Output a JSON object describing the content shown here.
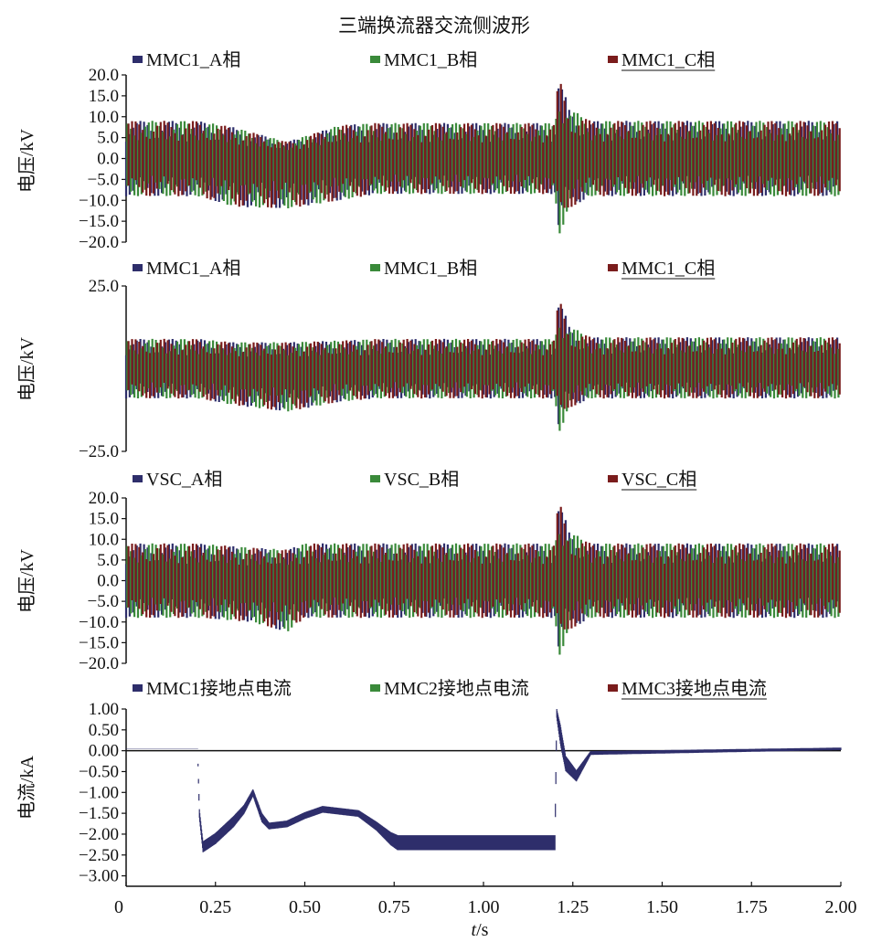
{
  "colors": {
    "A": "#2e2e6b",
    "B": "#3a8a3a",
    "C": "#7a1c1c"
  },
  "chart_data": [
    {
      "type": "line",
      "title": "三端换流器交流侧波形",
      "ylabel": "电压/kV",
      "ylim": [
        -20,
        20
      ],
      "yticks": [
        "20.0",
        "15.0",
        "10.0",
        "5.0",
        "0.0",
        "−5.0",
        "−10.0",
        "−15.0",
        "−20.0"
      ],
      "yticks_values": [
        20,
        15,
        10,
        5,
        0,
        -5,
        -10,
        -15,
        -20
      ],
      "legend": [
        "MMC1_A相",
        "MMC1_B相",
        "MMC1_C相"
      ],
      "series": [
        {
          "name": "MMC1_A相",
          "envelope": {
            "t": [
              0,
              0.2,
              0.3,
              0.45,
              0.6,
              0.7,
              1.2,
              1.21,
              1.24,
              1.3,
              2.0
            ],
            "top": [
              9,
              9,
              7.5,
              4,
              8,
              8.5,
              8.5,
              20,
              12,
              9,
              9
            ],
            "bottom": [
              -9,
              -9,
              -11.5,
              -12,
              -10,
              -8.5,
              -8.5,
              -19,
              -12,
              -9,
              -9
            ]
          }
        },
        {
          "name": "MMC1_B相",
          "envelope": {
            "t": [
              0,
              0.2,
              0.3,
              0.45,
              0.6,
              0.7,
              1.2,
              1.21,
              1.24,
              1.3,
              2.0
            ],
            "top": [
              9,
              9,
              7.5,
              4,
              8,
              8.5,
              8.5,
              20,
              12,
              9,
              9
            ],
            "bottom": [
              -9,
              -9,
              -11.5,
              -12,
              -10,
              -8.5,
              -8.5,
              -19,
              -12,
              -9,
              -9
            ]
          }
        },
        {
          "name": "MMC1_C相",
          "envelope": {
            "t": [
              0,
              0.2,
              0.3,
              0.45,
              0.6,
              0.7,
              1.2,
              1.21,
              1.24,
              1.3,
              2.0
            ],
            "top": [
              9,
              9,
              7.5,
              4,
              8,
              8.5,
              8.5,
              20,
              12,
              9,
              9
            ],
            "bottom": [
              -9,
              -9,
              -11.5,
              -12,
              -10,
              -8.5,
              -8.5,
              -19,
              -12,
              -9,
              -9
            ]
          }
        }
      ]
    },
    {
      "type": "line",
      "ylabel": "电压/kV",
      "ylim": [
        -25,
        25
      ],
      "yticks": [
        "25.0",
        "−25.0"
      ],
      "yticks_values": [
        25,
        -25
      ],
      "legend": [
        "MMC1_A相",
        "MMC1_B相",
        "MMC1_C相"
      ],
      "series": [
        {
          "name": "MMC1_A相",
          "envelope": {
            "t": [
              0,
              0.2,
              0.3,
              0.45,
              0.6,
              0.7,
              1.2,
              1.21,
              1.24,
              1.3,
              2.0
            ],
            "top": [
              9,
              9,
              8,
              8,
              8.5,
              9,
              9,
              22,
              13,
              9.5,
              9.5
            ],
            "bottom": [
              -9,
              -9,
              -11,
              -13,
              -10,
              -9,
              -9,
              -20,
              -12,
              -9,
              -9
            ]
          }
        },
        {
          "name": "MMC1_B相",
          "envelope": {
            "t": [
              0,
              0.2,
              0.3,
              0.45,
              0.6,
              0.7,
              1.2,
              1.21,
              1.24,
              1.3,
              2.0
            ],
            "top": [
              9,
              9,
              8,
              8,
              8.5,
              9,
              9,
              22,
              13,
              9.5,
              9.5
            ],
            "bottom": [
              -9,
              -9,
              -11,
              -13,
              -10,
              -9,
              -9,
              -20,
              -12,
              -9,
              -9
            ]
          }
        },
        {
          "name": "MMC1_C相",
          "envelope": {
            "t": [
              0,
              0.2,
              0.3,
              0.45,
              0.6,
              0.7,
              1.2,
              1.21,
              1.24,
              1.3,
              2.0
            ],
            "top": [
              9,
              9,
              8,
              8,
              8.5,
              9,
              9,
              22,
              13,
              9.5,
              9.5
            ],
            "bottom": [
              -9,
              -9,
              -11,
              -13,
              -10,
              -9,
              -9,
              -20,
              -12,
              -9,
              -9
            ]
          }
        }
      ]
    },
    {
      "type": "line",
      "ylabel": "电压/kV",
      "ylim": [
        -20,
        20
      ],
      "yticks": [
        "20.0",
        "15.0",
        "10.0",
        "5.0",
        "0.0",
        "−5.0",
        "−10.0",
        "−15.0",
        "−20.0"
      ],
      "yticks_values": [
        20,
        15,
        10,
        5,
        0,
        -5,
        -10,
        -15,
        -20
      ],
      "legend": [
        "VSC_A相",
        "VSC_B相",
        "VSC_C相"
      ],
      "series": [
        {
          "name": "VSC_A相",
          "envelope": {
            "t": [
              0,
              0.2,
              0.35,
              0.45,
              0.5,
              0.7,
              1.2,
              1.21,
              1.24,
              1.3,
              2.0
            ],
            "top": [
              9,
              9,
              8,
              7.5,
              9,
              9,
              9,
              20,
              12,
              9,
              9
            ],
            "bottom": [
              -9,
              -9,
              -10,
              -12.5,
              -9,
              -9,
              -9,
              -19,
              -12,
              -9,
              -9
            ]
          }
        },
        {
          "name": "VSC_B相",
          "envelope": {
            "t": [
              0,
              0.2,
              0.35,
              0.45,
              0.5,
              0.7,
              1.2,
              1.21,
              1.24,
              1.3,
              2.0
            ],
            "top": [
              9,
              9,
              8,
              7.5,
              9,
              9,
              9,
              20,
              12,
              9,
              9
            ],
            "bottom": [
              -9,
              -9,
              -10,
              -12.5,
              -9,
              -9,
              -9,
              -19,
              -12,
              -9,
              -9
            ]
          }
        },
        {
          "name": "VSC_C相",
          "envelope": {
            "t": [
              0,
              0.2,
              0.35,
              0.45,
              0.5,
              0.7,
              1.2,
              1.21,
              1.24,
              1.3,
              2.0
            ],
            "top": [
              9,
              9,
              8,
              7.5,
              9,
              9,
              9,
              20,
              12,
              9,
              9
            ],
            "bottom": [
              -9,
              -9,
              -10,
              -12.5,
              -9,
              -9,
              -9,
              -19,
              -12,
              -9,
              -9
            ]
          }
        }
      ]
    },
    {
      "type": "line",
      "ylabel": "电流/kA",
      "xlabel": "t/s",
      "ylim": [
        -3.25,
        1.0
      ],
      "xlim": [
        0,
        2.0
      ],
      "yticks": [
        "1.00",
        "0.50",
        "0.00",
        "−0.50",
        "−1.00",
        "−1.50",
        "−2.00",
        "−2.50",
        "−3.00"
      ],
      "yticks_values": [
        1,
        0.5,
        0,
        -0.5,
        -1,
        -1.5,
        -2,
        -2.5,
        -3
      ],
      "xticks": [
        "0",
        "0.25",
        "0.50",
        "0.75",
        "1.00",
        "1.25",
        "1.50",
        "1.75",
        "2.00"
      ],
      "xticks_values": [
        0,
        0.25,
        0.5,
        0.75,
        1.0,
        1.25,
        1.5,
        1.75,
        2.0
      ],
      "legend": [
        "MMC1接地点电流",
        "MMC2接地点电流",
        "MMC3接地点电流"
      ],
      "series": [
        {
          "name": "MMC1接地点电流",
          "x": [
            0,
            0.2,
            0.205,
            0.215,
            0.25,
            0.3,
            0.33,
            0.355,
            0.38,
            0.4,
            0.45,
            0.5,
            0.55,
            0.6,
            0.65,
            0.7,
            0.74,
            0.76,
            1.0,
            1.2,
            1.205,
            1.215,
            1.23,
            1.26,
            1.3,
            2.0
          ],
          "y": [
            0.05,
            0.05,
            -1.5,
            -2.3,
            -2.1,
            -1.7,
            -1.4,
            -1.0,
            -1.6,
            -1.8,
            -1.75,
            -1.55,
            -1.4,
            -1.45,
            -1.5,
            -1.8,
            -2.1,
            -2.2,
            -2.2,
            -2.2,
            0.9,
            0.4,
            -0.3,
            -0.6,
            -0.05,
            0.05
          ],
          "band": [
            0,
            0,
            0.2,
            0.25,
            0.25,
            0.25,
            0.2,
            0.15,
            0.2,
            0.15,
            0.15,
            0.15,
            0.15,
            0.15,
            0.15,
            0.2,
            0.3,
            0.35,
            0.35,
            0.35,
            0.2,
            0.45,
            0.35,
            0.25,
            0.08,
            0.05
          ]
        },
        {
          "name": "MMC2接地点电流",
          "x": [
            0,
            2.0
          ],
          "y": [
            0,
            0
          ]
        },
        {
          "name": "MMC3接地点电流",
          "x": [
            0,
            2.0
          ],
          "y": [
            0,
            0
          ]
        }
      ]
    }
  ]
}
